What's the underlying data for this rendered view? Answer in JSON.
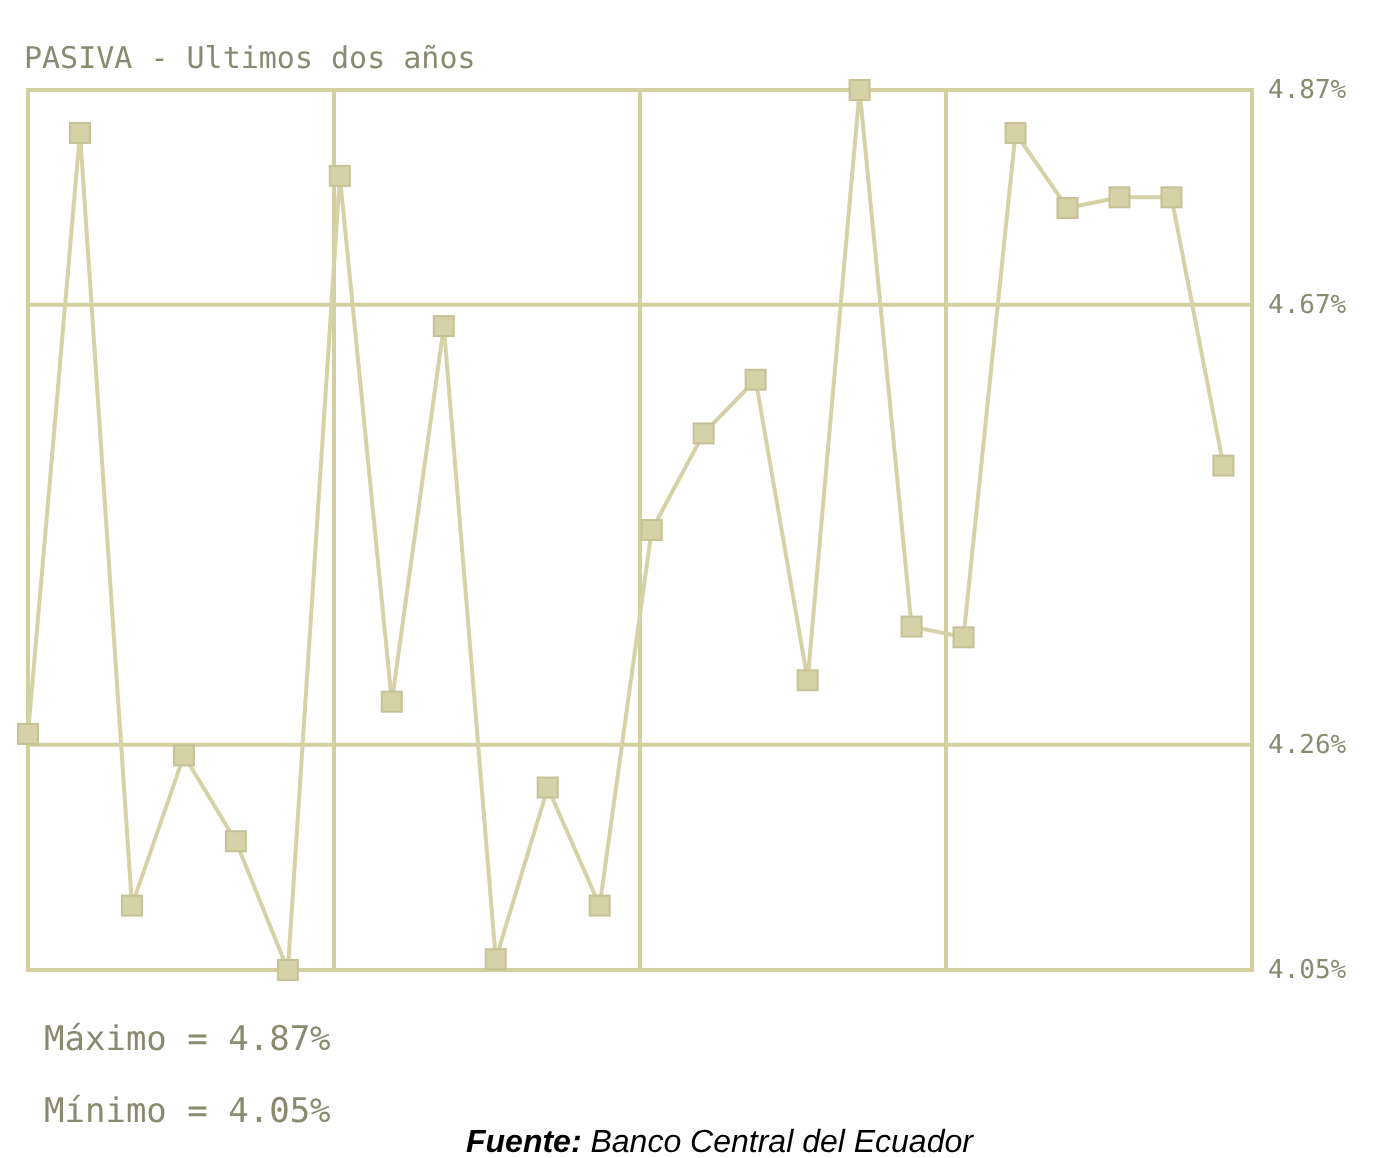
{
  "chart_data": {
    "type": "line",
    "title": "PASIVA - Ultimos dos años",
    "categories": [
      null,
      null,
      null,
      null,
      null,
      null,
      null,
      null,
      null,
      null,
      null,
      null,
      null,
      null,
      null,
      null,
      null,
      null,
      null,
      null,
      null,
      null,
      null,
      null
    ],
    "series": [
      {
        "color": "#d6d1a6",
        "values": [
          4.27,
          4.83,
          4.11,
          4.25,
          4.17,
          4.05,
          4.79,
          4.3,
          4.65,
          4.06,
          4.22,
          4.11,
          4.46,
          4.55,
          4.6,
          4.32,
          4.87,
          4.37,
          4.36,
          4.83,
          4.76,
          4.77,
          4.77,
          4.52
        ]
      }
    ],
    "ylim": [
      4.05,
      4.87
    ],
    "yticks": [
      {
        "value": 4.05,
        "label": "4.05%"
      },
      {
        "value": 4.26,
        "label": "4.26%"
      },
      {
        "value": 4.67,
        "label": "4.67%"
      },
      {
        "value": 4.87,
        "label": "4.87%"
      }
    ],
    "tick_labels": "y",
    "grid": true,
    "marker": "square",
    "line_style": "solid",
    "annotations": [
      "Máximo = 4.87%",
      "Mínimo = 4.05%",
      "Fuente: Banco Central del Ecuador"
    ]
  }
}
